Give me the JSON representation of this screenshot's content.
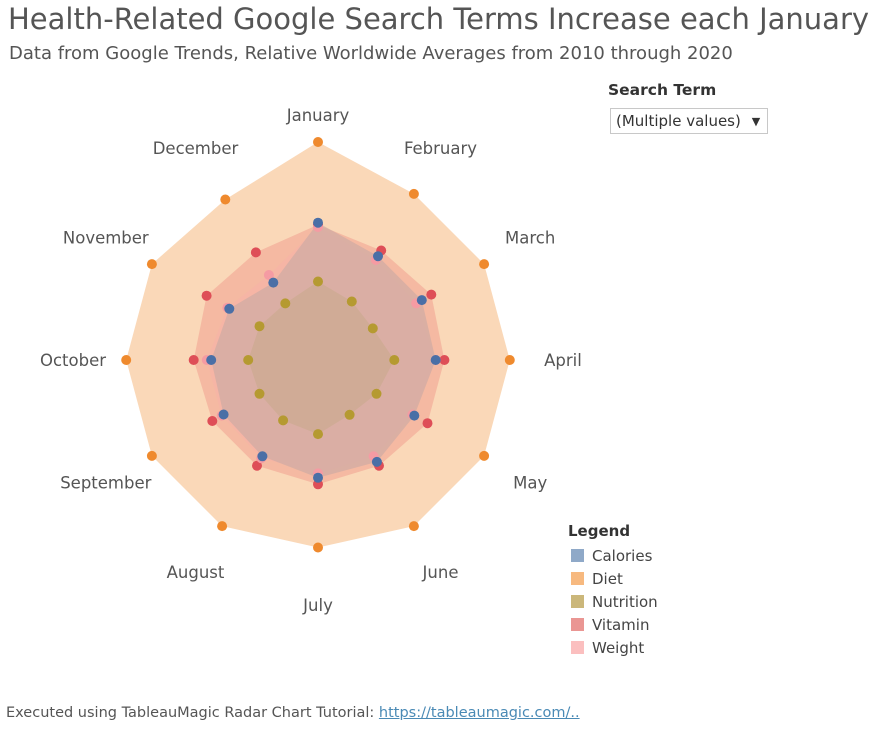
{
  "header": {
    "title": "Health-Related Google Search Terms Increase each January",
    "subtitle": "Data from Google Trends, Relative Worldwide Averages from 2010 through 2020"
  },
  "filter": {
    "label": "Search Term",
    "value": "(Multiple values)"
  },
  "legend": {
    "title": "Legend",
    "items": [
      {
        "label": "Calories",
        "color": "#8fa9c8"
      },
      {
        "label": "Diet",
        "color": "#f7b97f"
      },
      {
        "label": "Nutrition",
        "color": "#cbb77a"
      },
      {
        "label": "Vitamin",
        "color": "#ea9693"
      },
      {
        "label": "Weight",
        "color": "#fbbfbf"
      }
    ]
  },
  "footer": {
    "text": "Executed using TableauMagic Radar Chart Tutorial: ",
    "link": "https://tableaumagic.com/.."
  },
  "chart_data": {
    "type": "radar",
    "categories": [
      "January",
      "February",
      "March",
      "April",
      "May",
      "June",
      "July",
      "August",
      "September",
      "October",
      "November",
      "December"
    ],
    "series": [
      {
        "name": "Diet",
        "fill": "#f8cba0",
        "point": "#ef8a2e",
        "values": [
          100,
          88,
          88,
          88,
          88,
          88,
          86,
          88,
          88,
          88,
          88,
          85
        ]
      },
      {
        "name": "Vitamin",
        "fill": "#f0a08f",
        "point": "#de4e57",
        "values": [
          62,
          58,
          60,
          58,
          58,
          56,
          57,
          56,
          56,
          57,
          59,
          57
        ]
      },
      {
        "name": "Weight",
        "fill": "#f5b3a8",
        "point": "#f59ba3",
        "values": [
          61,
          53,
          52,
          54,
          50,
          51,
          52,
          52,
          51,
          51,
          48,
          45
        ]
      },
      {
        "name": "Calories",
        "fill": "#c2a8a4",
        "point": "#4a6fa6",
        "values": [
          63,
          55,
          55,
          54,
          51,
          54,
          54,
          51,
          50,
          49,
          47,
          41
        ]
      },
      {
        "name": "Nutrition",
        "fill": "#c9a98a",
        "point": "#b59a31",
        "values": [
          36,
          31,
          29,
          35,
          31,
          29,
          34,
          32,
          31,
          32,
          31,
          30
        ]
      }
    ]
  }
}
